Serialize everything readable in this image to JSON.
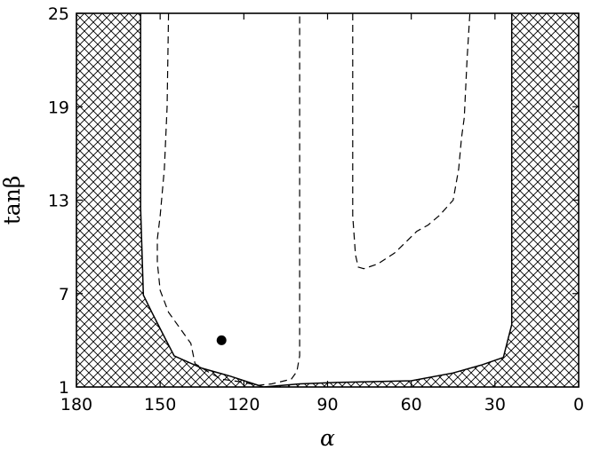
{
  "chart_data": {
    "type": "line",
    "xlabel": "α",
    "ylabel": "tanβ",
    "xlim": [
      180,
      0
    ],
    "ylim": [
      1,
      25
    ],
    "x_ticks": [
      180,
      150,
      120,
      90,
      60,
      30,
      0
    ],
    "y_ticks": [
      1,
      7,
      13,
      19,
      25
    ],
    "x_tick_labels": [
      "180",
      "150",
      "120",
      "90",
      "60",
      "30",
      "0"
    ],
    "y_tick_labels": [
      "1",
      "7",
      "13",
      "19",
      "25"
    ],
    "grid": false,
    "legend": "none",
    "excluded_region": {
      "fill": "crosshatch",
      "boundary": {
        "style": "solid",
        "points": [
          [
            157,
            25
          ],
          [
            157,
            12.5
          ],
          [
            156,
            6.9
          ],
          [
            153,
            5.8
          ],
          [
            149,
            4.4
          ],
          [
            145,
            3.0
          ],
          [
            135,
            2.2
          ],
          [
            125,
            1.7
          ],
          [
            113,
            1.0
          ],
          [
            100,
            1.2
          ],
          [
            85,
            1.3
          ],
          [
            60,
            1.4
          ],
          [
            45,
            1.9
          ],
          [
            35,
            2.4
          ],
          [
            27,
            2.9
          ],
          [
            24,
            5.0
          ],
          [
            24,
            25
          ]
        ]
      }
    },
    "series": [
      {
        "style": "dashed",
        "points": [
          [
            147,
            25
          ],
          [
            147.5,
            19
          ],
          [
            148.5,
            15
          ],
          [
            150,
            12
          ],
          [
            151,
            10.5
          ],
          [
            151,
            9
          ],
          [
            150,
            7.2
          ],
          [
            147,
            5.8
          ],
          [
            143,
            4.8
          ],
          [
            139,
            3.8
          ],
          [
            137.5,
            2.5
          ],
          [
            133,
            2.0
          ],
          [
            128,
            1.5
          ],
          [
            120,
            1.3
          ],
          [
            115,
            1.1
          ],
          [
            110,
            1.2
          ],
          [
            103,
            1.5
          ],
          [
            101,
            2.0
          ],
          [
            100,
            3.0
          ],
          [
            100,
            10
          ],
          [
            100,
            25
          ]
        ]
      },
      {
        "style": "dashed",
        "points": [
          [
            81,
            25
          ],
          [
            81,
            20
          ],
          [
            81,
            15
          ],
          [
            81,
            12
          ],
          [
            80,
            9.5
          ],
          [
            79,
            8.7
          ],
          [
            77,
            8.6
          ],
          [
            72,
            8.9
          ],
          [
            66,
            9.6
          ],
          [
            62,
            10.3
          ],
          [
            58,
            11.0
          ],
          [
            54,
            11.4
          ],
          [
            50,
            12.0
          ],
          [
            45,
            13.0
          ],
          [
            43,
            15
          ],
          [
            42,
            17
          ],
          [
            41,
            18.3
          ],
          [
            40,
            22
          ],
          [
            39,
            25
          ]
        ]
      }
    ],
    "markers": [
      {
        "style": "filled-circle",
        "x": 128,
        "y": 4.0
      }
    ]
  }
}
